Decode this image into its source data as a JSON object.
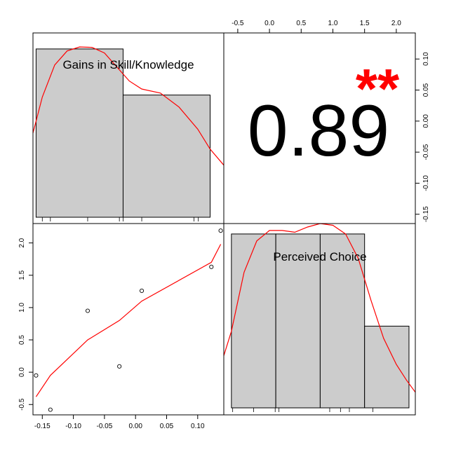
{
  "chart_data": {
    "type": "pairs",
    "variables": [
      "Gains in Skill/Knowledge",
      "Perceived Choice"
    ],
    "correlation": {
      "value": 0.89,
      "label": "0.89",
      "significance": "**",
      "significance_color": "#ff0000"
    },
    "scatter": {
      "points": [
        {
          "x": -0.16,
          "y": -0.05
        },
        {
          "x": -0.137,
          "y": -0.58
        },
        {
          "x": -0.077,
          "y": 0.95
        },
        {
          "x": -0.026,
          "y": 0.09
        },
        {
          "x": 0.01,
          "y": 1.26
        },
        {
          "x": 0.122,
          "y": 1.63
        },
        {
          "x": 0.137,
          "y": 2.19
        }
      ],
      "smooth_line": [
        {
          "x": -0.16,
          "y": -0.38
        },
        {
          "x": -0.137,
          "y": -0.05
        },
        {
          "x": -0.077,
          "y": 0.5
        },
        {
          "x": -0.026,
          "y": 0.8
        },
        {
          "x": 0.01,
          "y": 1.1
        },
        {
          "x": 0.122,
          "y": 1.7
        },
        {
          "x": 0.137,
          "y": 1.98
        }
      ],
      "smooth_color": "#ff0000",
      "xticks": [
        -0.15,
        -0.1,
        -0.05,
        0.0,
        0.05,
        0.1
      ],
      "xtick_labels": [
        "-0.15",
        "-0.10",
        "-0.05",
        "0.00",
        "0.05",
        "0.10"
      ],
      "yticks": [
        -0.5,
        0.0,
        0.5,
        1.0,
        1.5,
        2.0
      ],
      "ytick_labels": [
        "-0.5",
        "0.0",
        "0.5",
        "1.0",
        "1.5",
        "2.0"
      ],
      "xlim": [
        -0.165,
        0.142
      ],
      "ylim": [
        -0.66,
        2.3
      ]
    },
    "histogram_1": {
      "variable": "Gains in Skill/Knowledge",
      "bins": [
        {
          "start": -0.16,
          "end": -0.02,
          "count": 0.84
        },
        {
          "start": -0.02,
          "end": 0.12,
          "count": 0.61
        }
      ],
      "rug": [
        -0.15,
        -0.137,
        -0.077,
        -0.026,
        -0.02,
        0.01,
        0.094,
        0.101
      ],
      "density": [
        {
          "x": -0.165,
          "y": 0.42
        },
        {
          "x": -0.15,
          "y": 0.6
        },
        {
          "x": -0.13,
          "y": 0.76
        },
        {
          "x": -0.11,
          "y": 0.83
        },
        {
          "x": -0.09,
          "y": 0.85
        },
        {
          "x": -0.07,
          "y": 0.848
        },
        {
          "x": -0.05,
          "y": 0.82
        },
        {
          "x": -0.03,
          "y": 0.75
        },
        {
          "x": -0.01,
          "y": 0.68
        },
        {
          "x": 0.01,
          "y": 0.64
        },
        {
          "x": 0.04,
          "y": 0.62
        },
        {
          "x": 0.07,
          "y": 0.55
        },
        {
          "x": 0.1,
          "y": 0.44
        },
        {
          "x": 0.12,
          "y": 0.34
        },
        {
          "x": 0.142,
          "y": 0.26
        }
      ],
      "xlim": [
        -0.165,
        0.142
      ],
      "ylim": [
        0,
        0.92
      ],
      "density_color": "#ff0000",
      "bar_color": "#cccccc"
    },
    "histogram_2": {
      "variable": "Perceived Choice",
      "bins": [
        {
          "start": -0.6,
          "end": 0.1,
          "count": 1.0
        },
        {
          "start": 0.1,
          "end": 0.8,
          "count": 1.0
        },
        {
          "start": 0.8,
          "end": 1.5,
          "count": 1.0
        },
        {
          "start": 1.5,
          "end": 2.2,
          "count": 0.47
        }
      ],
      "rug": [
        -0.58,
        -0.25,
        0.09,
        0.15,
        0.95,
        1.12,
        1.26,
        1.63
      ],
      "density": [
        {
          "x": -0.72,
          "y": 0.3
        },
        {
          "x": -0.6,
          "y": 0.44
        },
        {
          "x": -0.4,
          "y": 0.78
        },
        {
          "x": -0.2,
          "y": 0.96
        },
        {
          "x": 0.0,
          "y": 1.02
        },
        {
          "x": 0.2,
          "y": 1.02
        },
        {
          "x": 0.4,
          "y": 1.01
        },
        {
          "x": 0.6,
          "y": 1.04
        },
        {
          "x": 0.8,
          "y": 1.06
        },
        {
          "x": 1.0,
          "y": 1.05
        },
        {
          "x": 1.2,
          "y": 1.0
        },
        {
          "x": 1.4,
          "y": 0.86
        },
        {
          "x": 1.6,
          "y": 0.62
        },
        {
          "x": 1.8,
          "y": 0.4
        },
        {
          "x": 2.0,
          "y": 0.25
        },
        {
          "x": 2.16,
          "y": 0.16
        },
        {
          "x": 2.3,
          "y": 0.09
        }
      ],
      "xlim": [
        -0.72,
        2.3
      ],
      "ylim": [
        0,
        1.06
      ],
      "density_color": "#ff0000",
      "bar_color": "#cccccc"
    },
    "top_axis": {
      "ticks": [
        -0.5,
        0.0,
        0.5,
        1.0,
        1.5,
        2.0
      ],
      "labels": [
        "-0.5",
        "0.0",
        "0.5",
        "1.0",
        "1.5",
        "2.0"
      ],
      "range": [
        -0.72,
        2.3
      ]
    },
    "right_axis": {
      "ticks": [
        -0.15,
        -0.1,
        -0.05,
        0.0,
        0.05,
        0.1
      ],
      "labels": [
        "-0.15",
        "-0.10",
        "-0.05",
        "0.00",
        "0.05",
        "0.10"
      ],
      "range": [
        -0.165,
        0.142
      ]
    }
  }
}
